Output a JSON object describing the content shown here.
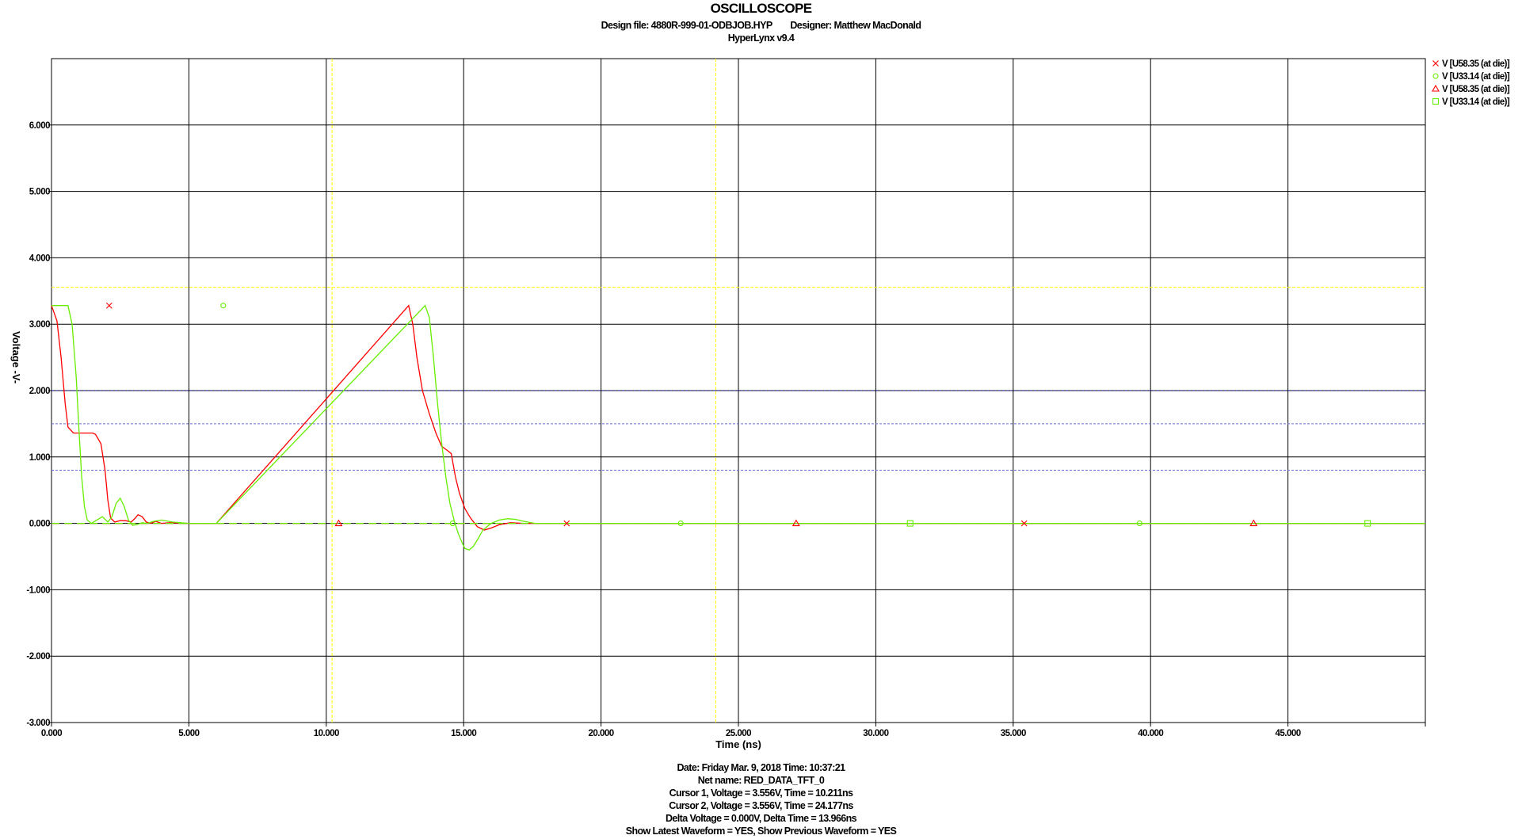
{
  "header": {
    "title": "OSCILLOSCOPE",
    "design_line": "Design file: 4880R-999-01-ODBJOB.HYP        Designer: Matthew MacDonald",
    "version": "HyperLynx v9.4"
  },
  "footer": {
    "date_line": "Date: Friday Mar. 9, 2018   Time: 10:37:21",
    "net_line": "Net name: RED_DATA_TFT_0",
    "cursor1_line": "Cursor 1, Voltage = 3.556V, Time = 10.211ns",
    "cursor2_line": "Cursor 2, Voltage = 3.556V, Time = 24.177ns",
    "delta_line": "Delta Voltage = 0.000V,  Delta Time = 13.966ns",
    "show_line": "Show Latest Waveform = YES,  Show Previous Waveform = YES"
  },
  "chart_data": {
    "type": "line",
    "xlabel": "Time  (ns)",
    "ylabel": "Voltage  -V-",
    "xlim": [
      0,
      50
    ],
    "ylim": [
      -3,
      7
    ],
    "grid": true,
    "legend_position": "top-right",
    "x_ticks": [
      0,
      5,
      10,
      15,
      20,
      25,
      30,
      35,
      40,
      45
    ],
    "x_tick_labels": [
      "0.000",
      "5.000",
      "10.000",
      "15.000",
      "20.000",
      "25.000",
      "30.000",
      "35.000",
      "40.000",
      "45.000"
    ],
    "y_ticks": [
      6,
      5,
      4,
      3,
      2,
      1,
      0,
      -1,
      -2,
      -3
    ],
    "y_tick_labels": [
      "6.000",
      "5.000",
      "4.000",
      "3.000",
      "2.000",
      "1.000",
      "0.000",
      "-1.000",
      "-2.000",
      "-3.000"
    ],
    "cursors": {
      "vertical_x": [
        10.211,
        24.177
      ],
      "horizontal_y": 3.556,
      "color": "#ffff00"
    },
    "threshold_lines": {
      "values": [
        2.0,
        1.5,
        0.8
      ],
      "colors": [
        "#000080",
        "#6a6ad8",
        "#6a6ad8"
      ]
    },
    "series": [
      {
        "name": "V [U58.35 (at die)]",
        "color": "#ff0000",
        "marker": "x",
        "x": [
          0,
          0.2,
          0.35,
          0.5,
          0.6,
          0.8,
          1.0,
          1.2,
          1.5,
          1.6,
          1.8,
          1.95,
          2.05,
          2.15,
          2.3,
          2.5,
          2.7,
          2.9,
          3.05,
          3.15,
          3.3,
          3.45,
          3.6,
          3.8,
          4.0,
          4.3,
          5.0,
          6.0,
          13.0,
          13.15,
          13.3,
          13.5,
          13.75,
          14.0,
          14.2,
          14.4,
          14.55,
          14.7,
          14.85,
          15.05,
          15.25,
          15.5,
          15.75,
          16.0,
          16.3,
          16.7,
          17.2,
          17.8,
          18.5,
          20,
          50
        ],
        "y": [
          3.28,
          3.05,
          2.5,
          1.8,
          1.45,
          1.36,
          1.36,
          1.36,
          1.36,
          1.34,
          1.2,
          0.8,
          0.35,
          0.08,
          0.02,
          0.04,
          0.04,
          0.02,
          0.08,
          0.13,
          0.1,
          0.02,
          0.0,
          0.03,
          0.0,
          0.01,
          0.0,
          0.0,
          3.28,
          3.0,
          2.5,
          2.0,
          1.65,
          1.35,
          1.16,
          1.1,
          1.05,
          0.7,
          0.45,
          0.22,
          0.08,
          -0.05,
          -0.1,
          -0.07,
          -0.02,
          0.01,
          0.0,
          0.0,
          0.0,
          0.0,
          0.0
        ]
      },
      {
        "name": "V [U33.14 (at die)]",
        "color": "#66ee00",
        "marker": "circle",
        "x": [
          0,
          0.6,
          0.75,
          0.9,
          1.0,
          1.1,
          1.2,
          1.3,
          1.45,
          1.65,
          1.85,
          2.05,
          2.2,
          2.35,
          2.5,
          2.65,
          2.8,
          2.95,
          3.1,
          3.3,
          3.5,
          3.7,
          4.0,
          4.4,
          5.0,
          6.0,
          13.6,
          13.75,
          13.9,
          14.05,
          14.2,
          14.35,
          14.5,
          14.65,
          14.8,
          14.95,
          15.05,
          15.2,
          15.35,
          15.5,
          15.7,
          16.0,
          16.3,
          16.6,
          16.9,
          17.2,
          17.6,
          18.0,
          18.5,
          20,
          50
        ],
        "y": [
          3.28,
          3.28,
          3.0,
          2.2,
          1.4,
          0.7,
          0.25,
          0.05,
          0.0,
          0.05,
          0.1,
          0.02,
          0.1,
          0.3,
          0.38,
          0.25,
          0.05,
          -0.03,
          -0.02,
          0.01,
          0.0,
          0.03,
          0.05,
          0.02,
          0.0,
          0.0,
          3.28,
          3.1,
          2.5,
          1.8,
          1.2,
          0.7,
          0.3,
          0.05,
          -0.15,
          -0.3,
          -0.38,
          -0.4,
          -0.35,
          -0.25,
          -0.1,
          0.0,
          0.05,
          0.07,
          0.06,
          0.03,
          0.0,
          0.0,
          0.0,
          0.0,
          0.0
        ]
      },
      {
        "name": "V [U58.35 (at die)]",
        "color": "#ff0000",
        "marker": "triangle",
        "x": [
          0,
          50
        ],
        "y": [
          0,
          0
        ]
      },
      {
        "name": "V [U33.14 (at die)]",
        "color": "#66ee00",
        "marker": "square",
        "x": [
          0,
          50
        ],
        "y": [
          0,
          0
        ]
      }
    ],
    "marker_points": [
      {
        "series": 0,
        "x": 2.1,
        "y": 3.28
      },
      {
        "series": 0,
        "x": 18.75,
        "y": 0
      },
      {
        "series": 0,
        "x": 35.4,
        "y": 0
      },
      {
        "series": 1,
        "x": 6.25,
        "y": 3.28
      },
      {
        "series": 1,
        "x": 22.9,
        "y": 0
      },
      {
        "series": 1,
        "x": 39.6,
        "y": 0
      },
      {
        "series": 2,
        "x": 10.45,
        "y": 0
      },
      {
        "series": 2,
        "x": 27.1,
        "y": 0
      },
      {
        "series": 2,
        "x": 43.75,
        "y": 0
      },
      {
        "series": 1,
        "x": 14.6,
        "y": 0
      },
      {
        "series": 3,
        "x": 31.25,
        "y": 0
      },
      {
        "series": 3,
        "x": 47.9,
        "y": 0
      }
    ]
  }
}
